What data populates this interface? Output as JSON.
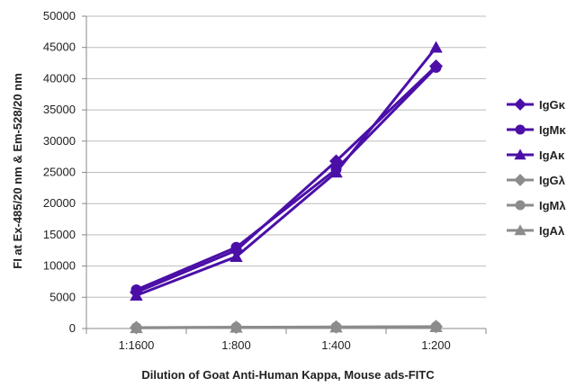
{
  "chart_data": {
    "type": "line",
    "title": "",
    "xlabel": "Dilution of Goat Anti-Human Kappa, Mouse ads-FITC",
    "ylabel": "FI at Ex-485/20 nm & Em-528/20 nm",
    "categories": [
      "1:1600",
      "1:800",
      "1:400",
      "1:200"
    ],
    "ylim": [
      0,
      50000
    ],
    "yticks": [
      0,
      5000,
      10000,
      15000,
      20000,
      25000,
      30000,
      35000,
      40000,
      45000,
      50000
    ],
    "grid": "horizontal",
    "legend_position": "right",
    "series": [
      {
        "name": "IgGκ",
        "marker": "diamond",
        "color": "#4B0FA8",
        "values": [
          5800,
          12500,
          26800,
          42000
        ]
      },
      {
        "name": "IgMκ",
        "marker": "circle",
        "color": "#4B0FA8",
        "values": [
          6200,
          13000,
          25500,
          41800
        ]
      },
      {
        "name": "IgAκ",
        "marker": "triangle",
        "color": "#4B0FA8",
        "values": [
          5300,
          11500,
          25000,
          45000
        ]
      },
      {
        "name": "IgGλ",
        "marker": "diamond",
        "color": "#8C8C8C",
        "values": [
          150,
          200,
          250,
          300
        ]
      },
      {
        "name": "IgMλ",
        "marker": "circle",
        "color": "#8C8C8C",
        "values": [
          120,
          180,
          220,
          280
        ]
      },
      {
        "name": "IgAλ",
        "marker": "triangle",
        "color": "#8C8C8C",
        "values": [
          100,
          160,
          200,
          260
        ]
      }
    ]
  }
}
